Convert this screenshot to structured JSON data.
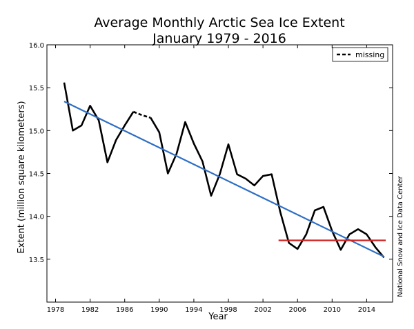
{
  "chart_data": {
    "type": "line",
    "title": "Average Monthly Arctic Sea Ice Extent",
    "subtitle": "January 1979 - 2016",
    "xlabel": "Year",
    "ylabel": "Extent (million square kilometers)",
    "credit": "National Snow and Ice Data Center",
    "xlim": [
      1977,
      2017
    ],
    "ylim": [
      13.0,
      16.0
    ],
    "x_ticks": [
      1978,
      1982,
      1986,
      1990,
      1994,
      1998,
      2002,
      2006,
      2010,
      2014
    ],
    "y_ticks": [
      13.5,
      14.0,
      14.5,
      15.0,
      15.5,
      16.0
    ],
    "legend": {
      "position": "top-right",
      "entries": [
        {
          "label": "missing",
          "style": "dashed",
          "color": "#000000"
        }
      ]
    },
    "series": [
      {
        "color": "#000000",
        "style": "solid",
        "segments": [
          {
            "x": [
              1979,
              1980,
              1981,
              1982,
              1983,
              1984,
              1985,
              1986,
              1987
            ],
            "y": [
              15.56,
              15.0,
              15.06,
              15.29,
              15.12,
              14.63,
              14.89,
              15.06,
              15.22
            ]
          },
          {
            "x": [
              1989,
              1990,
              1991,
              1992,
              1993,
              1994,
              1995,
              1996,
              1997,
              1998,
              1999,
              2000,
              2001,
              2002,
              2003,
              2004,
              2005,
              2006,
              2007,
              2008,
              2009,
              2010,
              2011,
              2012,
              2013,
              2014,
              2015,
              2016
            ],
            "y": [
              15.15,
              14.98,
              14.5,
              14.73,
              15.1,
              14.85,
              14.64,
              14.24,
              14.49,
              14.84,
              14.49,
              14.44,
              14.36,
              14.47,
              14.49,
              14.05,
              13.69,
              13.62,
              13.79,
              14.07,
              14.11,
              13.83,
              13.61,
              13.79,
              13.85,
              13.79,
              13.64,
              13.52
            ]
          }
        ]
      },
      {
        "color": "#000000",
        "style": "dashed",
        "x": [
          1987,
          1988,
          1989
        ],
        "y": [
          15.22,
          15.18,
          15.15
        ]
      },
      {
        "color": "#2f6fc4",
        "style": "solid",
        "x": [
          1979,
          2016
        ],
        "y": [
          15.34,
          13.53
        ]
      },
      {
        "color": "#d02020",
        "style": "solid",
        "x": [
          2003.8,
          2016.2
        ],
        "y": [
          13.72,
          13.72
        ]
      }
    ]
  }
}
